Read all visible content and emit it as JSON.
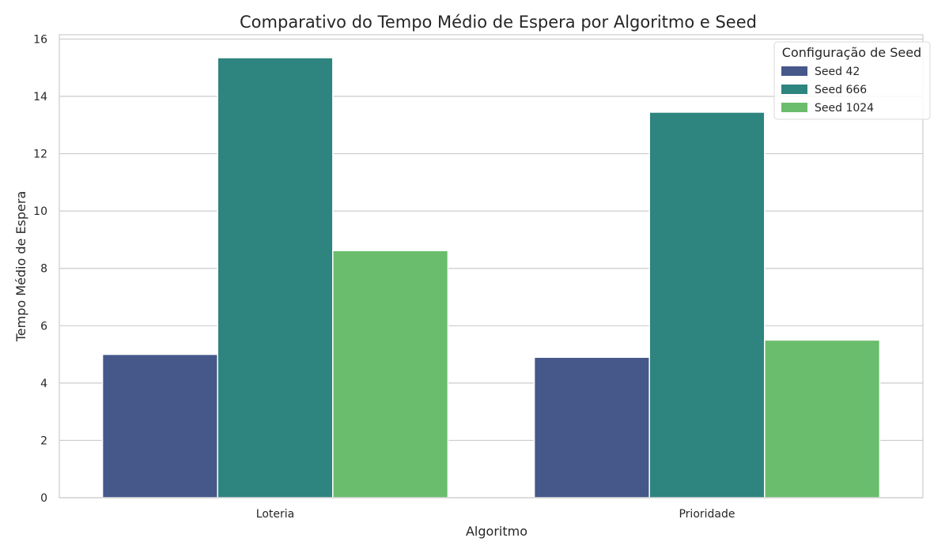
{
  "chart_data": {
    "type": "bar",
    "title": "Comparativo do Tempo Médio de Espera por Algoritmo e Seed",
    "xlabel": "Algoritmo",
    "ylabel": "Tempo Médio de Espera",
    "categories": [
      "Loteria",
      "Prioridade"
    ],
    "series": [
      {
        "name": "Seed 42",
        "values": [
          5.0,
          4.9
        ],
        "color": "#46578a"
      },
      {
        "name": "Seed 666",
        "values": [
          15.35,
          13.45
        ],
        "color": "#2e847e"
      },
      {
        "name": "Seed 1024",
        "values": [
          8.62,
          5.5
        ],
        "color": "#6abd6c"
      }
    ],
    "ylim": [
      0,
      16.15
    ],
    "yticks": [
      0,
      2,
      4,
      6,
      8,
      10,
      12,
      14,
      16
    ],
    "grid": true,
    "legend": {
      "title": "Configuração de Seed",
      "placement": "top-right"
    }
  }
}
